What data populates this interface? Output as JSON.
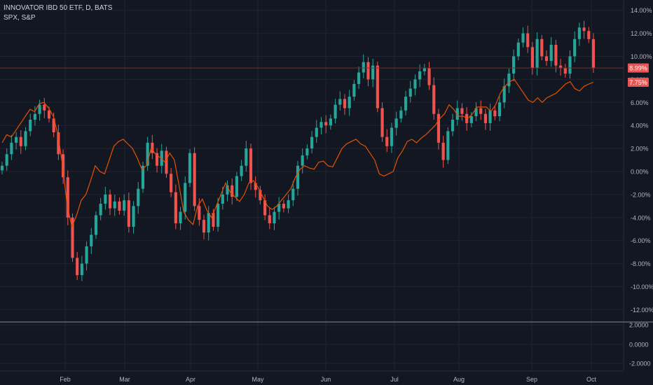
{
  "legend": {
    "main": "INNOVATOR IBD 50 ETF, D, BATS",
    "comparison": "SPX, S&P"
  },
  "chart_data": {
    "type": "candlestick",
    "y_unit": "percent change",
    "y_ticks": [
      "14.00%",
      "12.00%",
      "10.00%",
      "8.00%",
      "6.00%",
      "4.00%",
      "2.00%",
      "0.00%",
      "-2.00%",
      "-4.00%",
      "-6.00%",
      "-8.00%",
      "-10.00%",
      "-12.00%"
    ],
    "ylim": [
      -13,
      14.5
    ],
    "x_ticks": [
      "Feb",
      "Mar",
      "Apr",
      "May",
      "Jun",
      "Jul",
      "Aug",
      "Sep",
      "Oct"
    ],
    "grid": true,
    "last_value_labels": {
      "main": {
        "text": "8.99%",
        "value": 8.99,
        "color": "#ef5350"
      },
      "comparison": {
        "text": "7.75%",
        "value": 7.75,
        "color": "#ef5350"
      }
    },
    "colors": {
      "up": "#26a69a",
      "down": "#ef5350",
      "comparison_line": "#e65100",
      "background": "#131722",
      "grid": "#1f2433"
    },
    "series": [
      {
        "name": "INNOVATOR IBD 50 ETF",
        "style": "candles",
        "closes": [
          0.5,
          1.5,
          2.5,
          3.0,
          2.2,
          3.5,
          4.5,
          5.0,
          5.8,
          5.3,
          4.6,
          3.4,
          1.5,
          -0.5,
          -4.0,
          -7.5,
          -9.0,
          -8.0,
          -6.5,
          -5.5,
          -3.8,
          -2.8,
          -2.0,
          -3.2,
          -2.6,
          -3.4,
          -2.5,
          -4.8,
          -3.0,
          -1.5,
          0.5,
          2.5,
          1.6,
          0.5,
          1.8,
          -0.2,
          -1.8,
          -4.5,
          -3.5,
          -1.0,
          1.6,
          -3.0,
          -4.2,
          -5.3,
          -3.6,
          -4.8,
          -2.8,
          -2.0,
          -1.2,
          -2.2,
          -0.4,
          0.5,
          2.0,
          -1.0,
          -1.6,
          -2.5,
          -3.8,
          -4.5,
          -3.5,
          -2.8,
          -3.2,
          -2.5,
          -1.5,
          0.5,
          1.4,
          2.0,
          3.0,
          3.8,
          4.3,
          4.0,
          4.6,
          5.8,
          6.3,
          5.5,
          6.5,
          7.6,
          8.6,
          9.5,
          8.0,
          9.2,
          5.5,
          3.0,
          2.2,
          3.8,
          4.6,
          5.3,
          6.5,
          7.2,
          8.0,
          8.7,
          9.0,
          7.5,
          5.0,
          2.5,
          1.0,
          3.5,
          4.5,
          5.5,
          5.0,
          4.2,
          4.8,
          5.5,
          5.0,
          4.2,
          5.3,
          4.8,
          6.0,
          7.4,
          8.5,
          10.0,
          11.2,
          12.0,
          10.8,
          9.0,
          11.5,
          10.0,
          9.6,
          11.0,
          9.2,
          9.0,
          8.5,
          10.0,
          11.5,
          12.5,
          12.2,
          11.5,
          9.0
        ]
      },
      {
        "name": "SPX",
        "style": "line",
        "values": [
          2.5,
          3.2,
          3.0,
          3.6,
          4.2,
          4.8,
          5.4,
          5.2,
          5.9,
          6.0,
          5.5,
          4.8,
          3.2,
          0.5,
          -3.0,
          -4.8,
          -3.8,
          -2.5,
          -2.0,
          -0.8,
          0.5,
          0.0,
          -0.2,
          1.0,
          2.2,
          2.6,
          2.8,
          2.4,
          2.0,
          1.2,
          0.2,
          0.5,
          2.0,
          1.5,
          1.2,
          0.8,
          1.6,
          1.0,
          -1.2,
          -3.5,
          -4.2,
          -4.6,
          -3.0,
          -2.4,
          -3.4,
          -4.0,
          -3.0,
          -2.0,
          -1.0,
          -1.8,
          -2.2,
          -2.6,
          -2.0,
          -1.0,
          -0.8,
          -1.4,
          -2.2,
          -3.0,
          -3.3,
          -3.0,
          -2.5,
          -2.0,
          -1.5,
          -0.5,
          0.2,
          0.5,
          0.3,
          0.2,
          0.8,
          0.9,
          0.5,
          0.4,
          1.2,
          2.0,
          2.4,
          2.6,
          2.8,
          2.4,
          2.2,
          1.6,
          1.0,
          -0.2,
          -0.4,
          -0.2,
          0.0,
          1.2,
          1.8,
          2.6,
          2.8,
          2.5,
          2.9,
          3.2,
          3.6,
          4.0,
          4.6,
          5.0,
          5.8,
          5.4,
          4.8,
          4.8,
          4.6,
          5.0,
          5.6,
          5.6,
          5.6,
          5.2,
          5.8,
          6.8,
          7.4,
          7.8,
          8.0,
          7.4,
          6.8,
          6.2,
          6.0,
          6.4,
          6.0,
          6.4,
          6.6,
          6.8,
          7.2,
          7.6,
          7.8,
          7.2,
          7.0,
          7.4,
          7.6,
          7.75
        ]
      }
    ]
  },
  "oscillator": {
    "y_ticks": [
      "2.0000",
      "0.0000",
      "-2.0000"
    ]
  }
}
